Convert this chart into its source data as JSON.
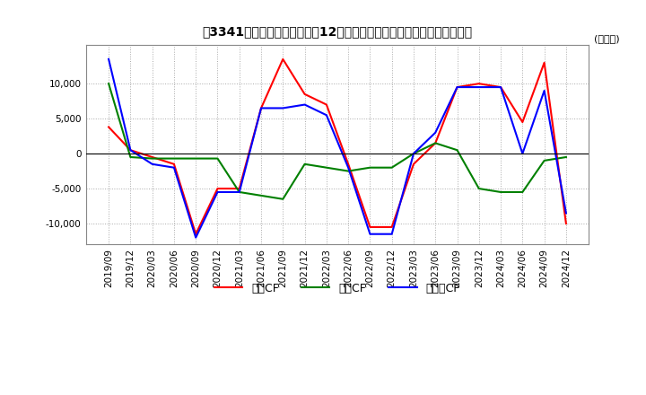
{
  "title": "　3341、キャッシュフローの12か月移動合計の対前年同期増減額の推移",
  "title_bracket_part": "　3341、",
  "ylabel": "(百万円)",
  "ylim": [
    -13000,
    15500
  ],
  "yticks": [
    -10000,
    -5000,
    0,
    5000,
    10000
  ],
  "legend_labels": [
    "営業CF",
    "投資CF",
    "フリーCF"
  ],
  "line_colors": [
    "#ff0000",
    "#008000",
    "#0000ff"
  ],
  "dates": [
    "2019/09",
    "2019/12",
    "2020/03",
    "2020/06",
    "2020/09",
    "2020/12",
    "2021/03",
    "2021/06",
    "2021/09",
    "2021/12",
    "2022/03",
    "2022/06",
    "2022/09",
    "2022/12",
    "2023/03",
    "2023/06",
    "2023/09",
    "2023/12",
    "2024/03",
    "2024/06",
    "2024/09",
    "2024/12"
  ],
  "operating_cf": [
    3800,
    500,
    -500,
    -1500,
    -11500,
    -5000,
    -5000,
    6500,
    13500,
    8500,
    7000,
    -1500,
    -10500,
    -10500,
    -1500,
    1500,
    9500,
    10000,
    9500,
    4500,
    13000,
    -10000
  ],
  "investing_cf": [
    10000,
    -500,
    -700,
    -700,
    -700,
    -700,
    -5500,
    -6000,
    -6500,
    -1500,
    -2000,
    -2500,
    -2000,
    -2000,
    0,
    1500,
    500,
    -5000,
    -5500,
    -5500,
    -1000,
    -500
  ],
  "free_cf": [
    13500,
    500,
    -1500,
    -2000,
    -12000,
    -5500,
    -5500,
    6500,
    6500,
    7000,
    5500,
    -2000,
    -11500,
    -11500,
    0,
    3000,
    9500,
    9500,
    9500,
    0,
    9000,
    -8500
  ]
}
